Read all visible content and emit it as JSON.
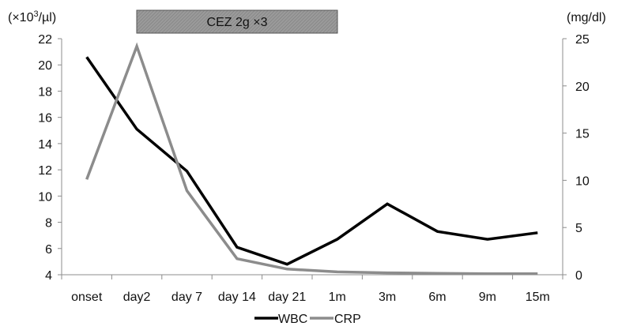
{
  "chart_data": {
    "type": "line",
    "categories": [
      "onset",
      "day2",
      "day 7",
      "day 14",
      "day 21",
      "1m",
      "3m",
      "6m",
      "9m",
      "15m"
    ],
    "series": [
      {
        "name": "WBC",
        "axis": "left",
        "color": "#000000",
        "values": [
          20.6,
          15.1,
          11.9,
          6.1,
          4.8,
          6.7,
          9.4,
          7.3,
          6.7,
          7.2
        ]
      },
      {
        "name": "CRP",
        "axis": "right",
        "color": "#8c8c8c",
        "values": [
          10.1,
          24.2,
          8.9,
          1.7,
          0.6,
          0.3,
          0.2,
          0.15,
          0.1,
          0.1
        ]
      }
    ],
    "left_axis": {
      "unit_label": "(×10",
      "unit_sup": "3",
      "unit_tail": "/µl)",
      "ylim": [
        4,
        22
      ],
      "ticks": [
        4,
        6,
        8,
        10,
        12,
        14,
        16,
        18,
        20,
        22
      ]
    },
    "right_axis": {
      "unit_label": "(mg/dl)",
      "ylim": [
        0,
        25
      ],
      "ticks": [
        0,
        5,
        10,
        15,
        20,
        25
      ]
    },
    "annotation": {
      "text": "CEZ 2g ×3",
      "from_category": "day2",
      "to_category": "day 14",
      "fill": "#8a8a8a"
    },
    "legend": {
      "position": "bottom",
      "entries": [
        "WBC",
        "CRP"
      ]
    },
    "grid": false
  }
}
